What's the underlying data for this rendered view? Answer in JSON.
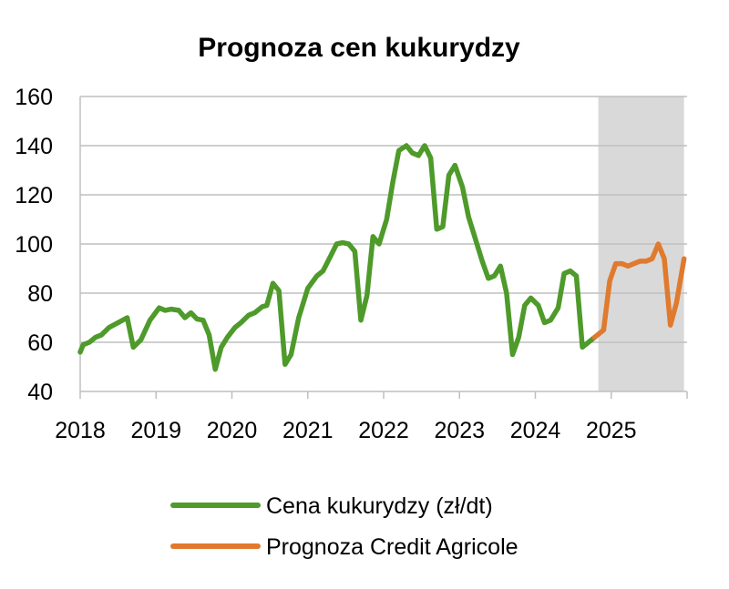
{
  "chart_data": {
    "type": "line",
    "title": "Prognoza cen kukurydzy",
    "xlabel": "",
    "ylabel": "",
    "ylim": [
      40,
      160
    ],
    "yticks": [
      "40",
      "60",
      "80",
      "100",
      "120",
      "140",
      "160"
    ],
    "xlim": [
      2018,
      2026
    ],
    "xticks": [
      "2018",
      "2019",
      "2020",
      "2021",
      "2022",
      "2023",
      "2024",
      "2025"
    ],
    "grid": true,
    "legend_position": "bottom",
    "forecast_shaded_range": [
      2024.83,
      2025.96
    ],
    "shade_color": "#d9d9d9",
    "series": [
      {
        "name": "Cena kukurydzy (zł/dt)",
        "color": "#4e9a2a",
        "x": [
          2018.0,
          2018.04,
          2018.12,
          2018.2,
          2018.28,
          2018.38,
          2018.5,
          2018.62,
          2018.7,
          2018.8,
          2018.92,
          2019.04,
          2019.12,
          2019.2,
          2019.3,
          2019.38,
          2019.46,
          2019.54,
          2019.62,
          2019.7,
          2019.78,
          2019.86,
          2019.94,
          2020.04,
          2020.12,
          2020.22,
          2020.3,
          2020.4,
          2020.46,
          2020.54,
          2020.62,
          2020.7,
          2020.78,
          2020.88,
          2021.0,
          2021.12,
          2021.2,
          2021.3,
          2021.38,
          2021.46,
          2021.54,
          2021.62,
          2021.7,
          2021.78,
          2021.86,
          2021.94,
          2022.04,
          2022.12,
          2022.2,
          2022.3,
          2022.38,
          2022.46,
          2022.54,
          2022.62,
          2022.7,
          2022.78,
          2022.86,
          2022.94,
          2023.04,
          2023.12,
          2023.2,
          2023.3,
          2023.38,
          2023.46,
          2023.54,
          2023.62,
          2023.7,
          2023.78,
          2023.86,
          2023.94,
          2024.04,
          2024.12,
          2024.2,
          2024.3,
          2024.38,
          2024.46,
          2024.54,
          2024.62,
          2024.7,
          2024.78
        ],
        "values": [
          56,
          59,
          60,
          62,
          63,
          66,
          68,
          70,
          58,
          61,
          69,
          74,
          73,
          73.5,
          73,
          70,
          72,
          69.5,
          69,
          63,
          49,
          58,
          62,
          66,
          68,
          71,
          72,
          74.5,
          75,
          84,
          81,
          51,
          55,
          70,
          82,
          87,
          89,
          95,
          100,
          100.5,
          100,
          97,
          69,
          79,
          103,
          100,
          110,
          125,
          138,
          140,
          137,
          136,
          140,
          135,
          106,
          107,
          128,
          132,
          123,
          111,
          103,
          93,
          86,
          87,
          91,
          80,
          55,
          62,
          75,
          78,
          75,
          68,
          69,
          74,
          88,
          89,
          87,
          58,
          60,
          62
        ]
      },
      {
        "name": "Prognoza Credit Agricole",
        "color": "#e07a2e",
        "x": [
          2024.78,
          2024.9,
          2024.98,
          2025.06,
          2025.14,
          2025.22,
          2025.3,
          2025.38,
          2025.46,
          2025.54,
          2025.62,
          2025.7,
          2025.78,
          2025.86,
          2025.96
        ],
        "values": [
          62,
          65,
          85,
          92,
          92,
          91,
          92,
          93,
          93,
          94,
          100,
          94,
          67,
          76,
          94
        ]
      }
    ]
  }
}
